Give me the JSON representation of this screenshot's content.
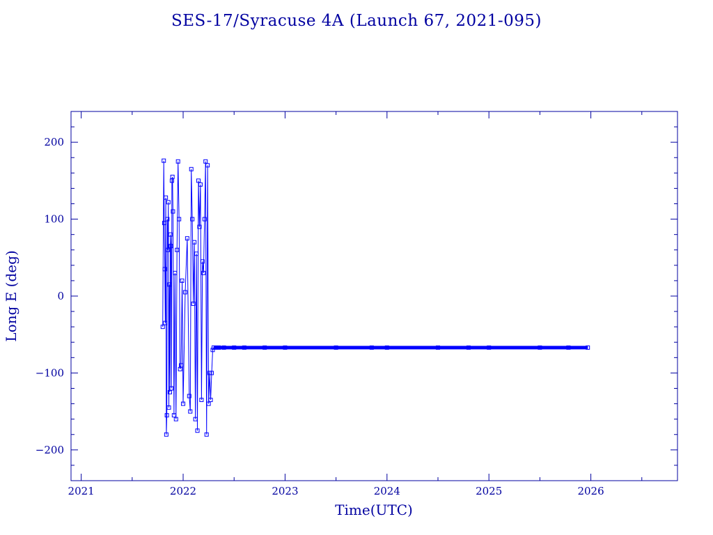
{
  "colors": {
    "axis": "#0000a0",
    "series": "#0000ff",
    "background": "#ffffff"
  },
  "chart_data": {
    "type": "line",
    "title": "SES-17/Syracuse 4A (Launch 67, 2021-095)",
    "xlabel": "Time(UTC)",
    "ylabel": "Long E (deg)",
    "xlim": [
      2020.9,
      2026.85
    ],
    "ylim": [
      -240,
      240
    ],
    "x_major_ticks": [
      2021,
      2022,
      2023,
      2024,
      2025,
      2026
    ],
    "x_tick_labels": [
      "2021",
      "2022",
      "2023",
      "2024",
      "2025",
      "2026"
    ],
    "y_major_ticks": [
      -200,
      -100,
      0,
      100,
      200
    ],
    "y_tick_labels": [
      "−200",
      "−100",
      "0",
      "100",
      "200"
    ],
    "grid": false,
    "legend": "none",
    "marker": "square",
    "series": [
      {
        "x": [
          2021.8,
          2021.81,
          2021.815,
          2021.82,
          2021.825,
          2021.83,
          2021.835,
          2021.84,
          2021.845,
          2021.85,
          2021.855,
          2021.86,
          2021.865,
          2021.87,
          2021.875,
          2021.88,
          2021.885,
          2021.89,
          2021.895,
          2021.9,
          2021.91,
          2021.92,
          2021.93,
          2021.94,
          2021.95,
          2021.96,
          2021.97,
          2021.98,
          2021.99,
          2022.0,
          2022.02,
          2022.04,
          2022.06,
          2022.07,
          2022.08,
          2022.09,
          2022.1,
          2022.11,
          2022.12,
          2022.13,
          2022.14,
          2022.15,
          2022.16,
          2022.17,
          2022.18,
          2022.19,
          2022.2,
          2022.21,
          2022.22,
          2022.23,
          2022.24,
          2022.25,
          2022.26,
          2022.27,
          2022.28,
          2022.29,
          2022.3,
          2022.32,
          2022.35,
          2022.4,
          2022.5,
          2022.6,
          2022.8,
          2023.0,
          2023.5,
          2023.85,
          2024.0,
          2024.5,
          2024.8,
          2025.0,
          2025.5,
          2025.78,
          2025.97
        ],
        "y": [
          -40,
          176,
          95,
          35,
          -35,
          128,
          -180,
          -155,
          100,
          60,
          122,
          -145,
          15,
          -125,
          80,
          65,
          -120,
          150,
          155,
          110,
          -155,
          30,
          -160,
          60,
          175,
          100,
          -95,
          -90,
          20,
          -140,
          5,
          75,
          -130,
          -150,
          165,
          100,
          -10,
          70,
          -160,
          55,
          -175,
          150,
          90,
          145,
          -135,
          45,
          30,
          100,
          175,
          -180,
          170,
          -140,
          -100,
          -135,
          -100,
          -70,
          -67,
          -67,
          -67,
          -67,
          -67,
          -67,
          -67,
          -67,
          -67,
          -67,
          -67,
          -67,
          -67,
          -67,
          -67,
          -67,
          -67
        ]
      }
    ]
  }
}
